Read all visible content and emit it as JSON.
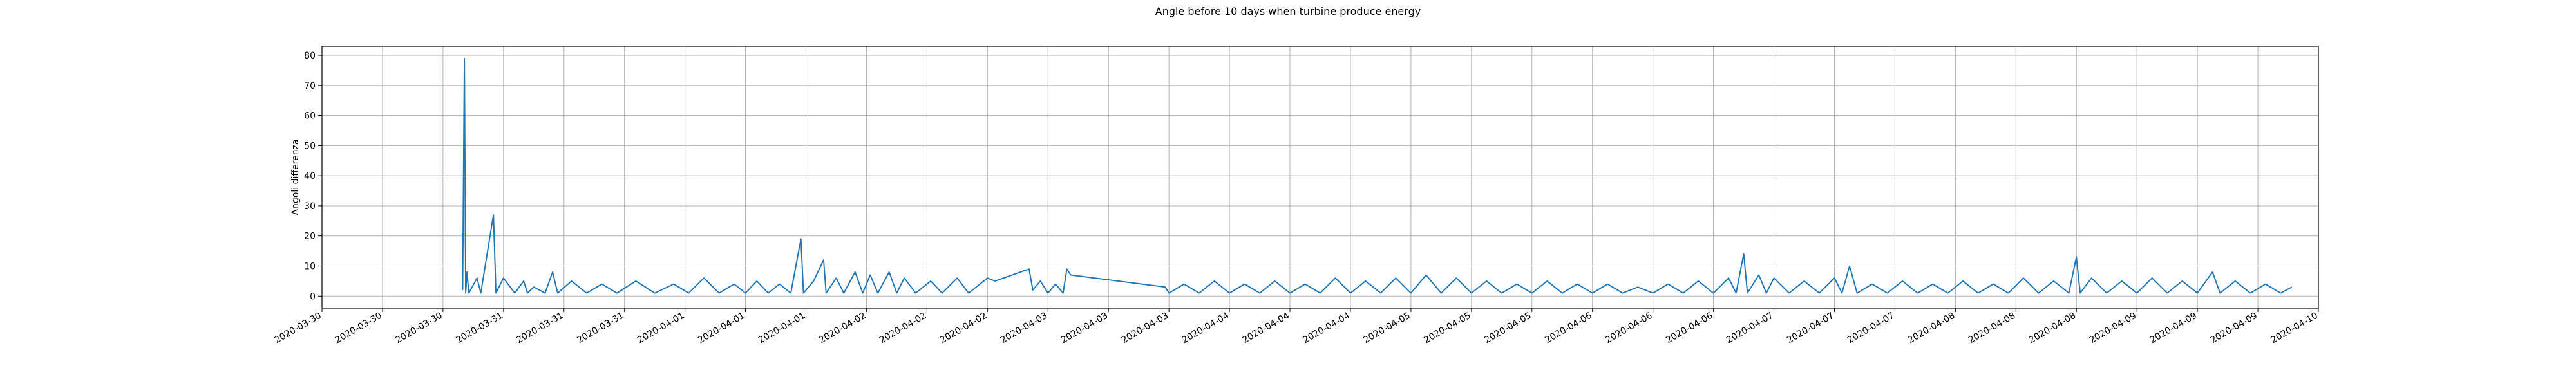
{
  "chart_data": {
    "type": "line",
    "title": "Angle before 10 days when turbine produce energy",
    "xlabel": "",
    "ylabel": "Angoli differenza",
    "xlim": [
      "2020-03-30T00:00",
      "2020-04-10T00:00"
    ],
    "ylim": [
      -4,
      83
    ],
    "grid": true,
    "y_ticks": [
      0,
      10,
      20,
      30,
      40,
      50,
      60,
      70,
      80
    ],
    "x_tick_labels": [
      "2020-03-30",
      "2020-03-30",
      "2020-03-30",
      "2020-03-31",
      "2020-03-31",
      "2020-03-31",
      "2020-04-01",
      "2020-04-01",
      "2020-04-01",
      "2020-04-02",
      "2020-04-02",
      "2020-04-02",
      "2020-04-03",
      "2020-04-03",
      "2020-04-03",
      "2020-04-04",
      "2020-04-04",
      "2020-04-04",
      "2020-04-05",
      "2020-04-05",
      "2020-04-05",
      "2020-04-06",
      "2020-04-06",
      "2020-04-06",
      "2020-04-07",
      "2020-04-07",
      "2020-04-07",
      "2020-04-08",
      "2020-04-08",
      "2020-04-08",
      "2020-04-09",
      "2020-04-09",
      "2020-04-09",
      "2020-04-10"
    ],
    "series": [
      {
        "color": "#1f77b4",
        "points": [
          {
            "x": "2020-03-30T18:36",
            "y": 2
          },
          {
            "x": "2020-03-30T18:50",
            "y": 79
          },
          {
            "x": "2020-03-30T19:00",
            "y": 1
          },
          {
            "x": "2020-03-30T19:10",
            "y": 8
          },
          {
            "x": "2020-03-30T19:25",
            "y": 1
          },
          {
            "x": "2020-03-30T20:30",
            "y": 6
          },
          {
            "x": "2020-03-30T21:00",
            "y": 1
          },
          {
            "x": "2020-03-30T22:40",
            "y": 27
          },
          {
            "x": "2020-03-30T23:00",
            "y": 1
          },
          {
            "x": "2020-03-31T00:00",
            "y": 6
          },
          {
            "x": "2020-03-31T01:30",
            "y": 1
          },
          {
            "x": "2020-03-31T02:40",
            "y": 5
          },
          {
            "x": "2020-03-31T03:10",
            "y": 1
          },
          {
            "x": "2020-03-31T04:00",
            "y": 3
          },
          {
            "x": "2020-03-31T05:30",
            "y": 1
          },
          {
            "x": "2020-03-31T06:30",
            "y": 8
          },
          {
            "x": "2020-03-31T07:10",
            "y": 1
          },
          {
            "x": "2020-03-31T09:00",
            "y": 5
          },
          {
            "x": "2020-03-31T11:00",
            "y": 1
          },
          {
            "x": "2020-03-31T13:00",
            "y": 4
          },
          {
            "x": "2020-03-31T15:00",
            "y": 1
          },
          {
            "x": "2020-03-31T17:30",
            "y": 5
          },
          {
            "x": "2020-03-31T20:00",
            "y": 1
          },
          {
            "x": "2020-03-31T22:30",
            "y": 4
          },
          {
            "x": "2020-04-01T00:30",
            "y": 1
          },
          {
            "x": "2020-04-01T02:30",
            "y": 6
          },
          {
            "x": "2020-04-01T04:30",
            "y": 1
          },
          {
            "x": "2020-04-01T06:30",
            "y": 4
          },
          {
            "x": "2020-04-01T08:00",
            "y": 1
          },
          {
            "x": "2020-04-01T09:30",
            "y": 5
          },
          {
            "x": "2020-04-01T11:00",
            "y": 1
          },
          {
            "x": "2020-04-01T12:30",
            "y": 4
          },
          {
            "x": "2020-04-01T14:00",
            "y": 1
          },
          {
            "x": "2020-04-01T15:20",
            "y": 19
          },
          {
            "x": "2020-04-01T15:40",
            "y": 1
          },
          {
            "x": "2020-04-01T17:00",
            "y": 5
          },
          {
            "x": "2020-04-01T18:20",
            "y": 12
          },
          {
            "x": "2020-04-01T18:40",
            "y": 1
          },
          {
            "x": "2020-04-01T20:00",
            "y": 6
          },
          {
            "x": "2020-04-01T21:00",
            "y": 1
          },
          {
            "x": "2020-04-01T22:30",
            "y": 8
          },
          {
            "x": "2020-04-01T23:30",
            "y": 1
          },
          {
            "x": "2020-04-02T00:30",
            "y": 7
          },
          {
            "x": "2020-04-02T01:30",
            "y": 1
          },
          {
            "x": "2020-04-02T03:00",
            "y": 8
          },
          {
            "x": "2020-04-02T04:00",
            "y": 1
          },
          {
            "x": "2020-04-02T05:00",
            "y": 6
          },
          {
            "x": "2020-04-02T06:30",
            "y": 1
          },
          {
            "x": "2020-04-02T08:30",
            "y": 5
          },
          {
            "x": "2020-04-02T10:00",
            "y": 1
          },
          {
            "x": "2020-04-02T12:00",
            "y": 6
          },
          {
            "x": "2020-04-02T13:30",
            "y": 1
          },
          {
            "x": "2020-04-02T15:00",
            "y": 4
          },
          {
            "x": "2020-04-02T16:00",
            "y": 6
          },
          {
            "x": "2020-04-02T17:00",
            "y": 5
          },
          {
            "x": "2020-04-02T21:30",
            "y": 9
          },
          {
            "x": "2020-04-02T22:00",
            "y": 2
          },
          {
            "x": "2020-04-02T23:00",
            "y": 5
          },
          {
            "x": "2020-04-03T00:00",
            "y": 1
          },
          {
            "x": "2020-04-03T01:00",
            "y": 4
          },
          {
            "x": "2020-04-03T02:00",
            "y": 1
          },
          {
            "x": "2020-04-03T02:30",
            "y": 9
          },
          {
            "x": "2020-04-03T03:00",
            "y": 7
          },
          {
            "x": "2020-04-03T15:30",
            "y": 3
          },
          {
            "x": "2020-04-03T16:00",
            "y": 1
          },
          {
            "x": "2020-04-03T18:00",
            "y": 4
          },
          {
            "x": "2020-04-03T20:00",
            "y": 1
          },
          {
            "x": "2020-04-03T22:00",
            "y": 5
          },
          {
            "x": "2020-04-04T00:00",
            "y": 1
          },
          {
            "x": "2020-04-04T02:00",
            "y": 4
          },
          {
            "x": "2020-04-04T04:00",
            "y": 1
          },
          {
            "x": "2020-04-04T06:00",
            "y": 5
          },
          {
            "x": "2020-04-04T08:00",
            "y": 1
          },
          {
            "x": "2020-04-04T10:00",
            "y": 4
          },
          {
            "x": "2020-04-04T12:00",
            "y": 1
          },
          {
            "x": "2020-04-04T14:00",
            "y": 6
          },
          {
            "x": "2020-04-04T16:00",
            "y": 1
          },
          {
            "x": "2020-04-04T18:00",
            "y": 5
          },
          {
            "x": "2020-04-04T20:00",
            "y": 1
          },
          {
            "x": "2020-04-04T22:00",
            "y": 6
          },
          {
            "x": "2020-04-05T00:00",
            "y": 1
          },
          {
            "x": "2020-04-05T02:00",
            "y": 7
          },
          {
            "x": "2020-04-05T04:00",
            "y": 1
          },
          {
            "x": "2020-04-05T06:00",
            "y": 6
          },
          {
            "x": "2020-04-05T08:00",
            "y": 1
          },
          {
            "x": "2020-04-05T10:00",
            "y": 5
          },
          {
            "x": "2020-04-05T12:00",
            "y": 1
          },
          {
            "x": "2020-04-05T14:00",
            "y": 4
          },
          {
            "x": "2020-04-05T16:00",
            "y": 1
          },
          {
            "x": "2020-04-05T18:00",
            "y": 5
          },
          {
            "x": "2020-04-05T20:00",
            "y": 1
          },
          {
            "x": "2020-04-05T22:00",
            "y": 4
          },
          {
            "x": "2020-04-06T00:00",
            "y": 1
          },
          {
            "x": "2020-04-06T02:00",
            "y": 4
          },
          {
            "x": "2020-04-06T04:00",
            "y": 1
          },
          {
            "x": "2020-04-06T06:00",
            "y": 3
          },
          {
            "x": "2020-04-06T08:00",
            "y": 1
          },
          {
            "x": "2020-04-06T10:00",
            "y": 4
          },
          {
            "x": "2020-04-06T12:00",
            "y": 1
          },
          {
            "x": "2020-04-06T14:00",
            "y": 5
          },
          {
            "x": "2020-04-06T16:00",
            "y": 1
          },
          {
            "x": "2020-04-06T18:00",
            "y": 6
          },
          {
            "x": "2020-04-06T19:00",
            "y": 1
          },
          {
            "x": "2020-04-06T20:00",
            "y": 14
          },
          {
            "x": "2020-04-06T20:30",
            "y": 1
          },
          {
            "x": "2020-04-06T22:00",
            "y": 7
          },
          {
            "x": "2020-04-06T23:00",
            "y": 1
          },
          {
            "x": "2020-04-07T00:00",
            "y": 6
          },
          {
            "x": "2020-04-07T02:00",
            "y": 1
          },
          {
            "x": "2020-04-07T04:00",
            "y": 5
          },
          {
            "x": "2020-04-07T06:00",
            "y": 1
          },
          {
            "x": "2020-04-07T08:00",
            "y": 6
          },
          {
            "x": "2020-04-07T09:00",
            "y": 1
          },
          {
            "x": "2020-04-07T10:00",
            "y": 10
          },
          {
            "x": "2020-04-07T11:00",
            "y": 1
          },
          {
            "x": "2020-04-07T13:00",
            "y": 4
          },
          {
            "x": "2020-04-07T15:00",
            "y": 1
          },
          {
            "x": "2020-04-07T17:00",
            "y": 5
          },
          {
            "x": "2020-04-07T19:00",
            "y": 1
          },
          {
            "x": "2020-04-07T21:00",
            "y": 4
          },
          {
            "x": "2020-04-07T23:00",
            "y": 1
          },
          {
            "x": "2020-04-08T01:00",
            "y": 5
          },
          {
            "x": "2020-04-08T03:00",
            "y": 1
          },
          {
            "x": "2020-04-08T05:00",
            "y": 4
          },
          {
            "x": "2020-04-08T07:00",
            "y": 1
          },
          {
            "x": "2020-04-08T09:00",
            "y": 6
          },
          {
            "x": "2020-04-08T11:00",
            "y": 1
          },
          {
            "x": "2020-04-08T13:00",
            "y": 5
          },
          {
            "x": "2020-04-08T15:00",
            "y": 1
          },
          {
            "x": "2020-04-08T16:00",
            "y": 13
          },
          {
            "x": "2020-04-08T16:30",
            "y": 1
          },
          {
            "x": "2020-04-08T18:00",
            "y": 6
          },
          {
            "x": "2020-04-08T20:00",
            "y": 1
          },
          {
            "x": "2020-04-08T22:00",
            "y": 5
          },
          {
            "x": "2020-04-09T00:00",
            "y": 1
          },
          {
            "x": "2020-04-09T02:00",
            "y": 6
          },
          {
            "x": "2020-04-09T04:00",
            "y": 1
          },
          {
            "x": "2020-04-09T06:00",
            "y": 5
          },
          {
            "x": "2020-04-09T08:00",
            "y": 1
          },
          {
            "x": "2020-04-09T10:00",
            "y": 8
          },
          {
            "x": "2020-04-09T11:00",
            "y": 1
          },
          {
            "x": "2020-04-09T13:00",
            "y": 5
          },
          {
            "x": "2020-04-09T15:00",
            "y": 1
          },
          {
            "x": "2020-04-09T17:00",
            "y": 4
          },
          {
            "x": "2020-04-09T19:00",
            "y": 1
          },
          {
            "x": "2020-04-09T20:30",
            "y": 3
          }
        ]
      }
    ]
  }
}
